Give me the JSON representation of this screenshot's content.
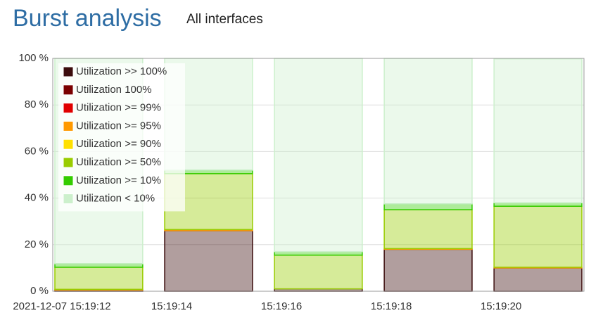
{
  "chart_data": {
    "type": "stacked_bar",
    "title": "Burst analysis",
    "subtitle": "All interfaces",
    "categories": [
      "2021-12-07 15:19:12",
      "15:19:14",
      "15:19:16",
      "15:19:18",
      "15:19:20"
    ],
    "series": [
      {
        "name": "Utilization >> 100%",
        "color": "#3b0c0c",
        "values": [
          0.5,
          26,
          1,
          18,
          10
        ]
      },
      {
        "name": "Utilization 100%",
        "color": "#7a0000",
        "values": [
          0,
          0,
          0,
          0,
          0
        ]
      },
      {
        "name": "Utilization >= 99%",
        "color": "#e00000",
        "values": [
          0,
          0,
          0,
          0,
          0
        ]
      },
      {
        "name": "Utilization >= 95%",
        "color": "#ff9900",
        "values": [
          0.3,
          0.5,
          0,
          0.3,
          0.3
        ]
      },
      {
        "name": "Utilization >= 90%",
        "color": "#ffe000",
        "values": [
          0,
          0,
          0,
          0,
          0
        ]
      },
      {
        "name": "Utilization >= 50%",
        "color": "#99cc00",
        "values": [
          9.5,
          24,
          14.5,
          16.7,
          26.2
        ]
      },
      {
        "name": "Utilization >= 10%",
        "color": "#33cc00",
        "values": [
          1.5,
          1.5,
          1.5,
          2.5,
          1.5
        ]
      },
      {
        "name": "Utilization < 10%",
        "color": "#ccf0cc",
        "values": [
          88.2,
          48,
          83,
          62.5,
          61.8
        ]
      }
    ],
    "ylim": [
      0,
      100
    ],
    "yticks": [
      {
        "value": 0,
        "label": "0 %"
      },
      {
        "value": 20,
        "label": "20 %"
      },
      {
        "value": 40,
        "label": "40 %"
      },
      {
        "value": 60,
        "label": "60 %"
      },
      {
        "value": 80,
        "label": "80 %"
      },
      {
        "value": 100,
        "label": "100 %"
      }
    ],
    "grid": true,
    "legend": "top-left"
  }
}
